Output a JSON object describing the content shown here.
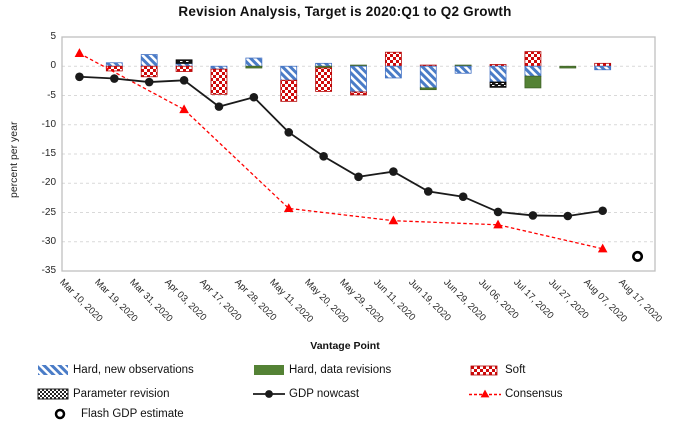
{
  "title": "Revision Analysis, Target is 2020:Q1 to Q2 Growth",
  "chart_data": {
    "type": "combo: stacked revision bars + nowcast line + consensus line + flash point",
    "title": "Revision Analysis, Target is 2020:Q1 to Q2 Growth",
    "xlabel": "Vantage Point",
    "ylabel": "percent per year",
    "ylim": [
      -35,
      5
    ],
    "ytick_step": 5,
    "yticks": [
      5,
      0,
      -5,
      -10,
      -15,
      -20,
      -25,
      -30,
      -35
    ],
    "grid": "horizontal dashed light-gray",
    "legend_position": "bottom",
    "categories": [
      "Mar 10, 2020",
      "Mar 19, 2020",
      "Mar 31, 2020",
      "Apr 03, 2020",
      "Apr 17, 2020",
      "Apr 28, 2020",
      "May 11, 2020",
      "May 20, 2020",
      "May 29, 2020",
      "Jun 11, 2020",
      "Jun 19, 2020",
      "Jun 29, 2020",
      "Jul 06, 2020",
      "Jul 17, 2020",
      "Jul 27, 2020",
      "Aug 07, 2020",
      "Aug 17, 2020"
    ],
    "bar_series_keys": {
      "hard_new": "Hard, new observations",
      "hard_rev": "Hard, data revisions",
      "soft": "Soft",
      "param": "Parameter revision"
    },
    "bars": [
      {
        "pos": [],
        "neg": []
      },
      {
        "pos": [
          {
            "k": "hard_new",
            "v": 0.6
          }
        ],
        "neg": [
          {
            "k": "soft",
            "v": 0.8
          }
        ]
      },
      {
        "pos": [
          {
            "k": "hard_new",
            "v": 2.0
          }
        ],
        "neg": [
          {
            "k": "soft",
            "v": 1.8
          }
        ]
      },
      {
        "pos": [
          {
            "k": "hard_new",
            "v": 0.5
          },
          {
            "k": "param",
            "v": 0.6
          }
        ],
        "neg": [
          {
            "k": "soft",
            "v": 0.9
          }
        ]
      },
      {
        "pos": [],
        "neg": [
          {
            "k": "hard_new",
            "v": 0.5
          },
          {
            "k": "soft",
            "v": 4.3
          }
        ]
      },
      {
        "pos": [
          {
            "k": "hard_new",
            "v": 1.4
          }
        ],
        "neg": [
          {
            "k": "hard_rev",
            "v": 0.3
          }
        ]
      },
      {
        "pos": [],
        "neg": [
          {
            "k": "hard_new",
            "v": 2.4
          },
          {
            "k": "soft",
            "v": 3.6
          }
        ]
      },
      {
        "pos": [
          {
            "k": "hard_new",
            "v": 0.5
          }
        ],
        "neg": [
          {
            "k": "hard_rev",
            "v": 0.3
          },
          {
            "k": "soft",
            "v": 4.0
          }
        ]
      },
      {
        "pos": [
          {
            "k": "hard_rev",
            "v": 0.2
          }
        ],
        "neg": [
          {
            "k": "hard_new",
            "v": 4.4
          },
          {
            "k": "soft",
            "v": 0.5
          }
        ]
      },
      {
        "pos": [
          {
            "k": "soft",
            "v": 2.4
          }
        ],
        "neg": [
          {
            "k": "hard_new",
            "v": 2.0
          }
        ]
      },
      {
        "pos": [
          {
            "k": "soft",
            "v": 0.2
          }
        ],
        "neg": [
          {
            "k": "hard_new",
            "v": 3.7
          },
          {
            "k": "hard_rev",
            "v": 0.3
          }
        ]
      },
      {
        "pos": [
          {
            "k": "hard_rev",
            "v": 0.2
          }
        ],
        "neg": [
          {
            "k": "hard_new",
            "v": 1.2
          }
        ]
      },
      {
        "pos": [
          {
            "k": "soft",
            "v": 0.3
          }
        ],
        "neg": [
          {
            "k": "hard_new",
            "v": 2.7
          },
          {
            "k": "param",
            "v": 0.9
          }
        ]
      },
      {
        "pos": [
          {
            "k": "soft",
            "v": 2.5
          }
        ],
        "neg": [
          {
            "k": "hard_new",
            "v": 1.7
          },
          {
            "k": "hard_rev",
            "v": 2.0
          }
        ]
      },
      {
        "pos": [],
        "neg": [
          {
            "k": "hard_rev",
            "v": 0.3
          }
        ]
      },
      {
        "pos": [
          {
            "k": "soft",
            "v": 0.5
          }
        ],
        "neg": [
          {
            "k": "hard_new",
            "v": 0.6
          }
        ]
      },
      {
        "pos": [],
        "neg": []
      }
    ],
    "series": [
      {
        "name": "GDP nowcast",
        "type": "line",
        "marker": "filled-circle",
        "color": "#1a1a1a",
        "values": [
          -1.8,
          -2.1,
          -2.7,
          -2.4,
          -6.9,
          -5.3,
          -11.3,
          -15.4,
          -18.9,
          -18.0,
          -21.4,
          -22.3,
          -24.9,
          -25.5,
          -25.6,
          -24.7,
          null
        ]
      },
      {
        "name": "Consensus",
        "type": "line",
        "style": "dashed",
        "marker": "triangle",
        "color": "#ff0000",
        "points": [
          {
            "x": "Mar 10, 2020",
            "x_index": 0,
            "y": 2.2
          },
          {
            "x": "Apr 03, 2020",
            "x_index": 3,
            "y": -7.4
          },
          {
            "x": "May 11, 2020",
            "x_index": 6,
            "y": -24.3
          },
          {
            "x": "Jun 11, 2020",
            "x_index": 9,
            "y": -26.4
          },
          {
            "x": "Jul 06, 2020",
            "x_index": 12,
            "y": -27.1
          },
          {
            "x": "Aug 07, 2020",
            "x_index": 15,
            "y": -31.2
          }
        ]
      },
      {
        "name": "Flash GDP estimate",
        "type": "point",
        "marker": "open-circle",
        "color": "#000000",
        "points": [
          {
            "x": "Aug 17, 2020",
            "x_index": 16,
            "y": -32.5
          }
        ]
      }
    ],
    "legend": [
      {
        "label": "Hard, new observations",
        "swatch": "hatch-blue"
      },
      {
        "label": "Hard, data revisions",
        "swatch": "solid-green"
      },
      {
        "label": "Soft",
        "swatch": "checker-red"
      },
      {
        "label": "Parameter revision",
        "swatch": "checker-black"
      },
      {
        "label": "GDP nowcast",
        "swatch": "line-dot-black"
      },
      {
        "label": "Consensus",
        "swatch": "dash-triangle-red"
      },
      {
        "label": "Flash GDP estimate",
        "swatch": "open-circle"
      }
    ],
    "colors": {
      "hard_new": "#4472c4",
      "hard_rev": "#548235",
      "soft": "#cf0a0a",
      "param": "#151515",
      "nowcast": "#1a1a1a",
      "consensus": "#ff0000",
      "grid": "#d9d9d9",
      "plot_border": "#bfbfbf"
    }
  }
}
